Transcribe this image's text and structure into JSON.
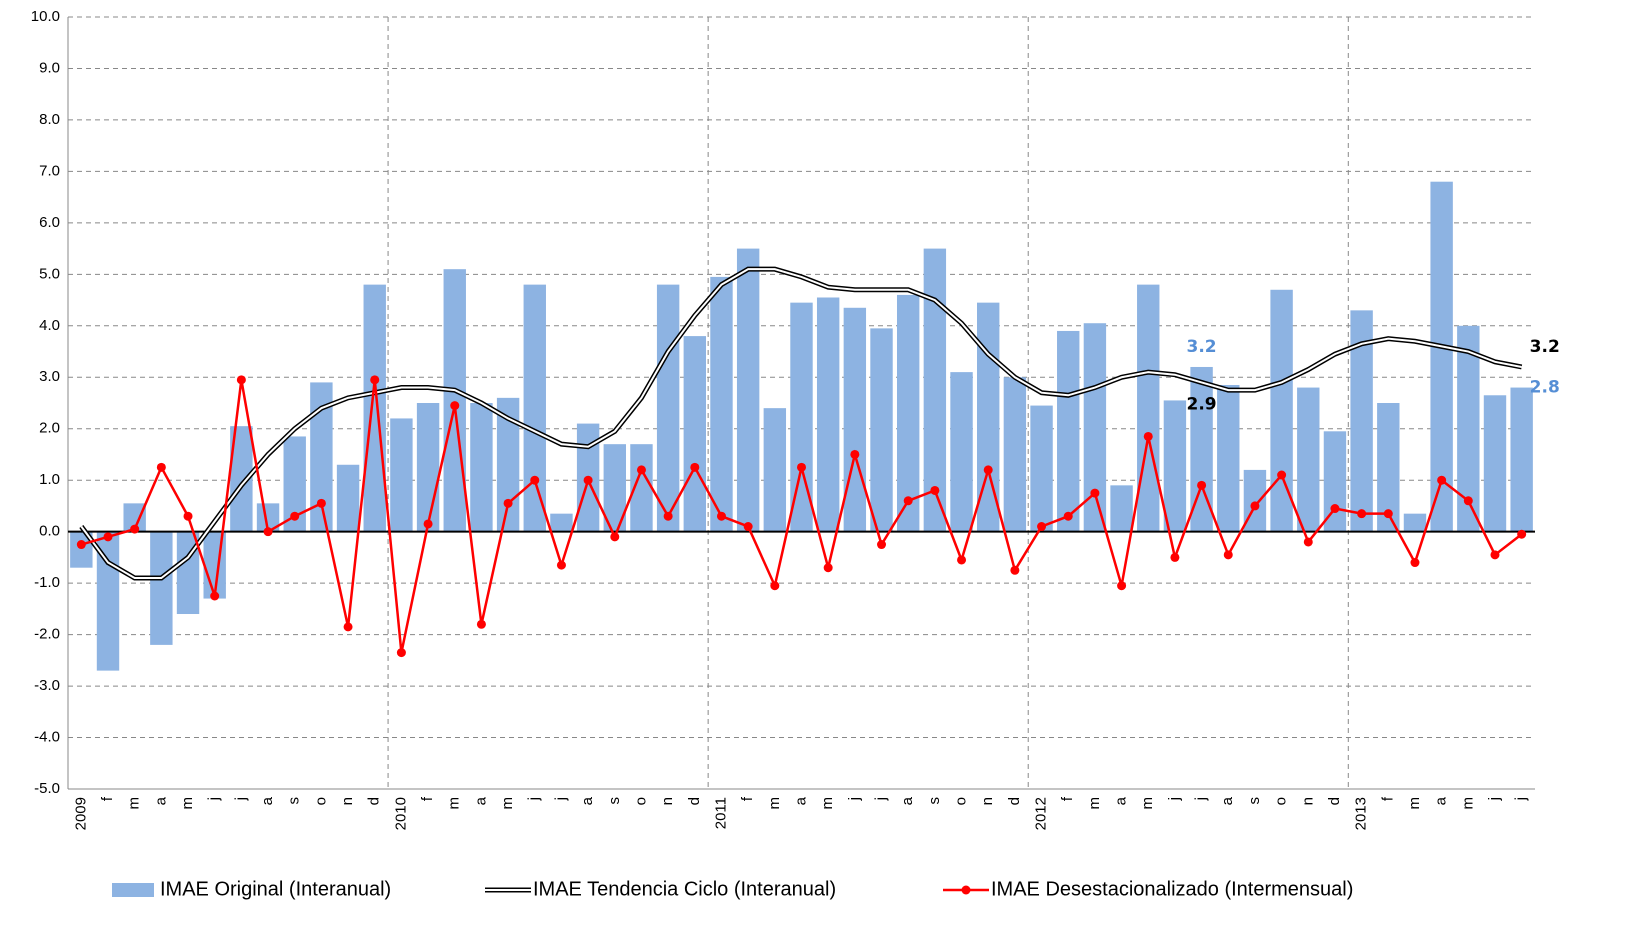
{
  "chart_data": {
    "type": "bar-line",
    "categories": [
      "2009",
      "f",
      "m",
      "a",
      "m",
      "j",
      "j",
      "a",
      "s",
      "o",
      "n",
      "d",
      "2010",
      "f",
      "m",
      "a",
      "m",
      "j",
      "j",
      "a",
      "s",
      "o",
      "n",
      "d",
      "2011",
      "f",
      "m",
      "a",
      "m",
      "j",
      "j",
      "a",
      "s",
      "o",
      "n",
      "d",
      "2012",
      "f",
      "m",
      "a",
      "m",
      "j",
      "j",
      "a",
      "s",
      "o",
      "n",
      "d",
      "2013",
      "f",
      "m",
      "a",
      "m",
      "j",
      "j"
    ],
    "series": [
      {
        "name": "IMAE Original (Interanual)",
        "kind": "bar",
        "color": "#8db3e2",
        "label_color": "#558ed5",
        "labeled": [
          42,
          54
        ],
        "values": [
          -0.7,
          -2.7,
          0.55,
          -2.2,
          -1.6,
          -1.3,
          2.05,
          0.55,
          1.85,
          2.9,
          1.3,
          4.8,
          2.2,
          2.5,
          5.1,
          2.5,
          2.6,
          4.8,
          0.35,
          2.1,
          1.7,
          1.7,
          4.8,
          3.8,
          4.95,
          5.5,
          2.4,
          4.45,
          4.55,
          4.35,
          3.95,
          4.6,
          5.5,
          3.1,
          4.45,
          3.0,
          2.45,
          3.9,
          4.05,
          0.9,
          4.8,
          2.55,
          3.2,
          2.85,
          1.2,
          4.7,
          2.8,
          1.95,
          4.3,
          2.5,
          0.35,
          6.8,
          4.0,
          2.65,
          2.8
        ]
      },
      {
        "name": "IMAE Tendencia Ciclo (Interanual)",
        "kind": "trend",
        "color": "#000000",
        "label_color": "#000000",
        "labeled": [
          42,
          54
        ],
        "values": [
          0.1,
          -0.6,
          -0.9,
          -0.9,
          -0.5,
          0.2,
          0.9,
          1.5,
          2.0,
          2.4,
          2.6,
          2.7,
          2.8,
          2.8,
          2.75,
          2.5,
          2.2,
          1.95,
          1.7,
          1.65,
          1.95,
          2.6,
          3.5,
          4.2,
          4.8,
          5.1,
          5.1,
          4.95,
          4.75,
          4.7,
          4.7,
          4.7,
          4.5,
          4.05,
          3.45,
          3.0,
          2.7,
          2.65,
          2.8,
          3.0,
          3.1,
          3.05,
          2.9,
          2.75,
          2.75,
          2.9,
          3.15,
          3.45,
          3.65,
          3.75,
          3.7,
          3.6,
          3.5,
          3.3,
          3.2
        ]
      },
      {
        "name": "IMAE Desestacionalizado (Intermensual)",
        "kind": "line",
        "color": "#ff0000",
        "values": [
          -0.25,
          -0.1,
          0.05,
          1.25,
          0.3,
          -1.25,
          2.95,
          0.0,
          0.3,
          0.55,
          -1.85,
          2.95,
          -2.35,
          0.15,
          2.45,
          -1.8,
          0.55,
          1.0,
          -0.65,
          1.0,
          -0.1,
          1.2,
          0.3,
          1.25,
          0.3,
          0.1,
          -1.05,
          1.25,
          -0.7,
          1.5,
          -0.25,
          0.6,
          0.8,
          -0.55,
          1.2,
          -0.75,
          0.1,
          0.3,
          0.75,
          -1.05,
          1.85,
          -0.5,
          0.9,
          -0.45,
          0.5,
          1.1,
          -0.2,
          0.45,
          0.35,
          0.35,
          -0.6,
          1.0,
          0.6,
          -0.45,
          -0.05
        ]
      }
    ],
    "ylim": [
      -5,
      10
    ],
    "yticks": [
      {
        "value": 10,
        "label": "10.0"
      },
      {
        "value": 9,
        "label": "9.0"
      },
      {
        "value": 8,
        "label": "8.0"
      },
      {
        "value": 7,
        "label": "7.0"
      },
      {
        "value": 6,
        "label": "6.0"
      },
      {
        "value": 5,
        "label": "5.0"
      },
      {
        "value": 4,
        "label": "4.0"
      },
      {
        "value": 3,
        "label": "3.0"
      },
      {
        "value": 2,
        "label": "2.0"
      },
      {
        "value": 1,
        "label": "1.0"
      },
      {
        "value": 0,
        "label": "0.0"
      },
      {
        "value": -1,
        "label": "-1.0"
      },
      {
        "value": -2,
        "label": "-2.0"
      },
      {
        "value": -3,
        "label": "-3.0"
      },
      {
        "value": -4,
        "label": "-4.0"
      },
      {
        "value": -5,
        "label": "-5.0"
      }
    ],
    "grid": true,
    "legend": "bottom"
  }
}
